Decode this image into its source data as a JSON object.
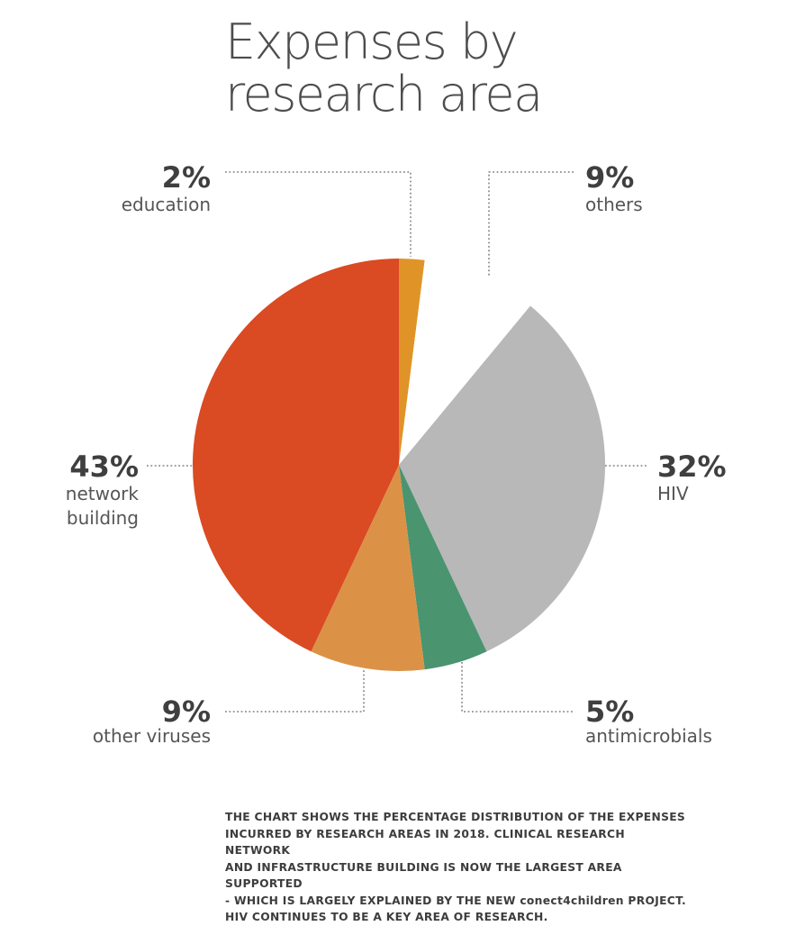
{
  "title": {
    "line1": "Expenses by",
    "line2": "research area"
  },
  "chart_data": {
    "type": "pie",
    "title": "Expenses by research area",
    "slices": [
      {
        "label": "education",
        "value": 2,
        "display": "2%",
        "color": "#E09427"
      },
      {
        "label": "others",
        "value": 9,
        "display": "9%",
        "color": "#FFFFFF"
      },
      {
        "label": "HIV",
        "value": 32,
        "display": "32%",
        "color": "#B8B8B8"
      },
      {
        "label": "antimicrobials",
        "value": 5,
        "display": "5%",
        "color": "#4A9470"
      },
      {
        "label": "other viruses",
        "value": 9,
        "display": "9%",
        "color": "#DB9247"
      },
      {
        "label": "network building",
        "value": 43,
        "display": "43%",
        "color": "#DA4A23"
      }
    ]
  },
  "labels": {
    "education": {
      "pct": "2%",
      "name": "education"
    },
    "others": {
      "pct": "9%",
      "name": "others"
    },
    "hiv": {
      "pct": "32%",
      "name": "HIV"
    },
    "antimicrobials": {
      "pct": "5%",
      "name": "antimicrobials"
    },
    "other_viruses": {
      "pct": "9%",
      "name": "other viruses"
    },
    "network": {
      "pct": "43%",
      "name_line1": "network",
      "name_line2": "building"
    }
  },
  "caption": {
    "line1": "THE CHART SHOWS THE PERCENTAGE DISTRIBUTION OF THE EXPENSES",
    "line2": "INCURRED BY RESEARCH AREAS IN 2018. CLINICAL RESEARCH NETWORK",
    "line3": "AND INFRASTRUCTURE BUILDING IS NOW THE LARGEST AREA SUPPORTED",
    "line4": "- WHICH IS LARGELY EXPLAINED BY THE NEW conect4children PROJECT.",
    "line5": "HIV CONTINUES TO BE A KEY AREA OF RESEARCH."
  }
}
